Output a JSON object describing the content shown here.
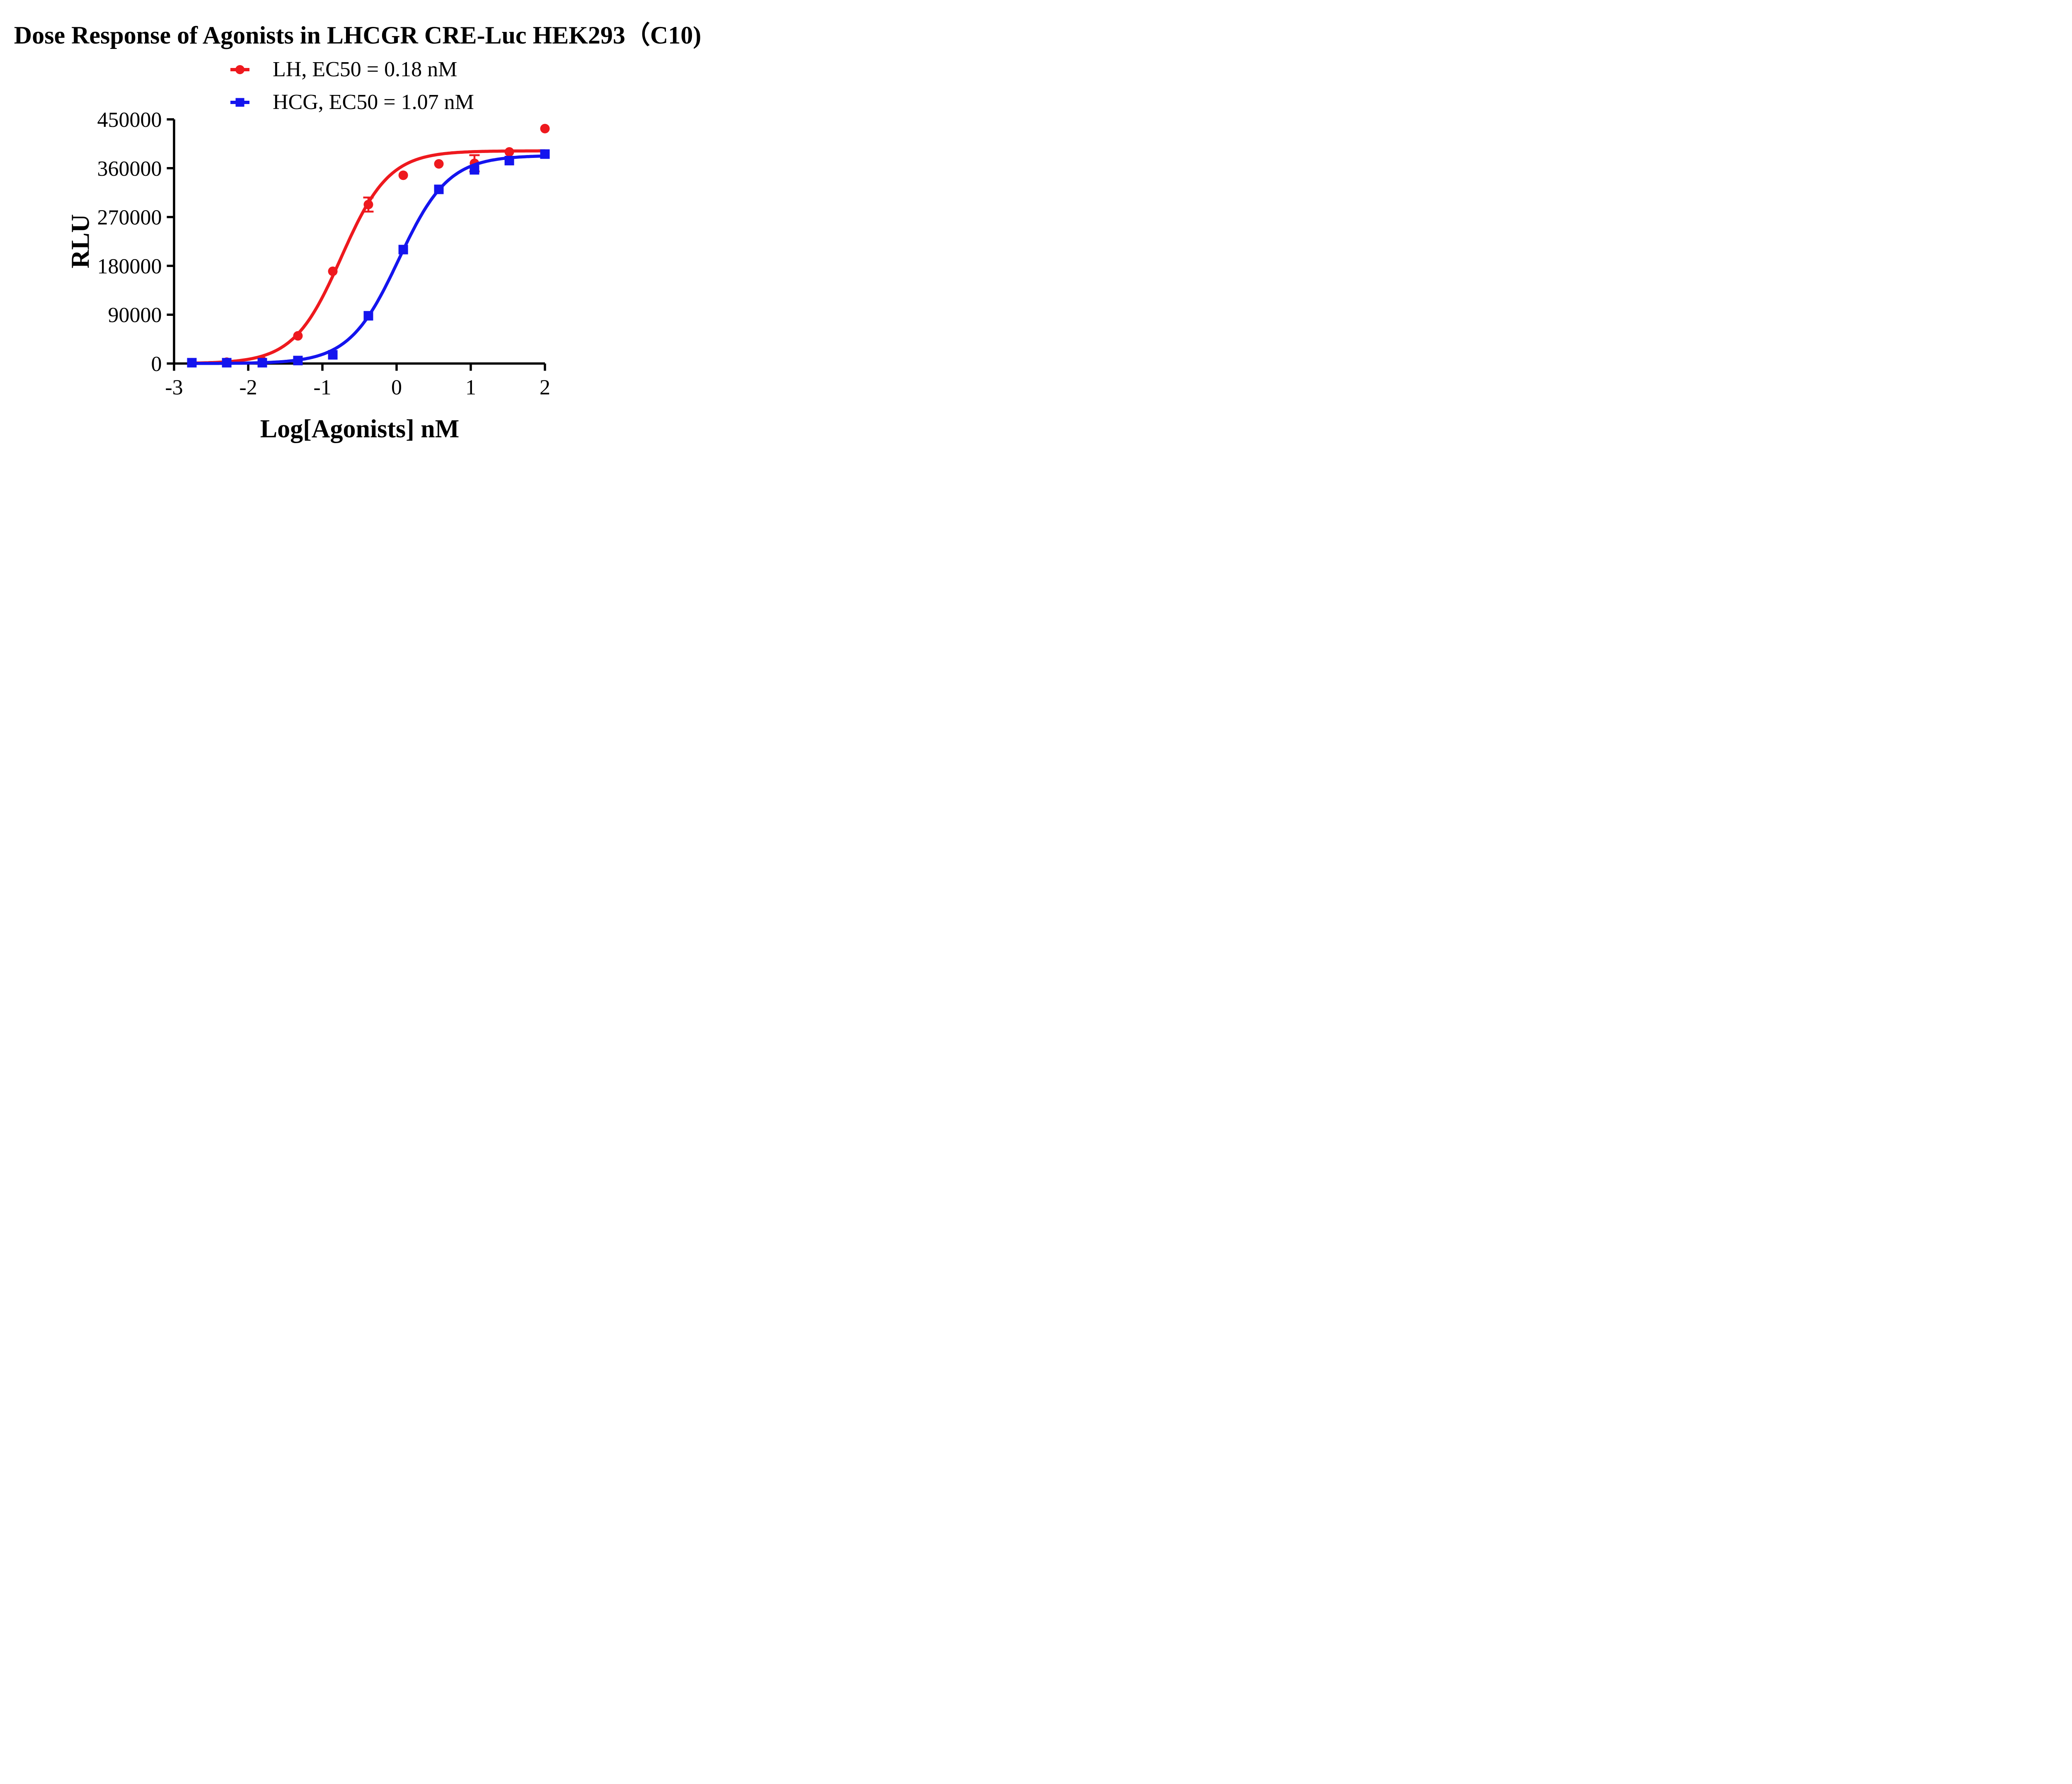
{
  "title": "Dose Response of Agonists in LHCGR CRE-Luc HEK293（C10)",
  "chart_data": {
    "type": "line",
    "title": "Dose Response of Agonists in LHCGR CRE-Luc HEK293（C10)",
    "xlabel": "Log[Agonists] nM",
    "ylabel": "RLU",
    "x_ticks": [
      -3,
      -2,
      -1,
      0,
      1,
      2
    ],
    "y_ticks": [
      0,
      90000,
      180000,
      270000,
      360000,
      450000
    ],
    "xlim": [
      -3,
      2
    ],
    "ylim": [
      0,
      450000
    ],
    "grid": false,
    "legend_position": "top-center",
    "x": [
      -2.76,
      -2.29,
      -1.81,
      -1.33,
      -0.86,
      -0.38,
      0.09,
      0.57,
      1.05,
      1.52,
      2.0
    ],
    "series": [
      {
        "name": "LH, EC50 = 0.18 nM",
        "ec50_nM": 0.18,
        "color": "#EE191E",
        "marker": "circle",
        "values": [
          1500,
          2500,
          4500,
          51000,
          170000,
          293000,
          347000,
          368000,
          369000,
          390000,
          433000
        ],
        "error_bars": [
          {
            "x": -0.38,
            "y": 293000,
            "dy": 13000
          },
          {
            "x": 1.05,
            "y": 369000,
            "dy": 15000
          }
        ],
        "fit": {
          "bottom": 0,
          "top": 392000,
          "logEC50": -0.745,
          "hill": 1.35
        }
      },
      {
        "name": "HCG, EC50 = 1.07 nM",
        "ec50_nM": 1.07,
        "color": "#1414EE",
        "marker": "square",
        "values": [
          1500,
          1500,
          1500,
          5500,
          16000,
          88000,
          210000,
          321000,
          357000,
          374000,
          386000
        ],
        "error_bars": [],
        "fit": {
          "bottom": 0,
          "top": 383500,
          "logEC50": 0.029,
          "hill": 1.3
        }
      }
    ]
  }
}
